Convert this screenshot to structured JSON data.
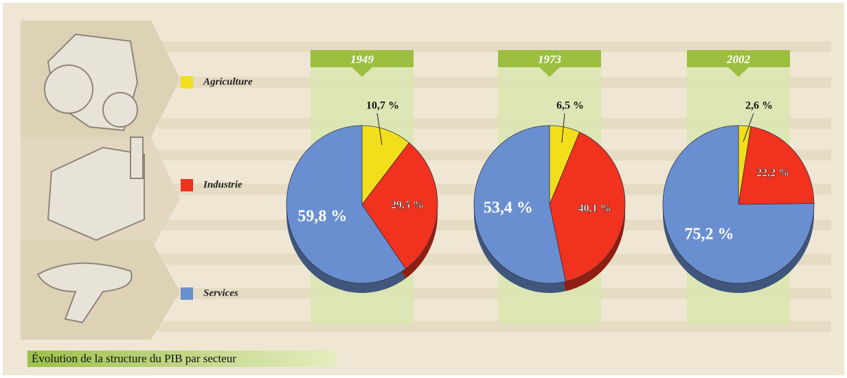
{
  "title": "Évolution de la structure du PIB par secteur",
  "legend": [
    {
      "name": "Agriculture",
      "color": "#f2df1c"
    },
    {
      "name": "Industrie",
      "color": "#f0321e"
    },
    {
      "name": "Services",
      "color": "#6a8fd0"
    }
  ],
  "chart_data": [
    {
      "type": "pie",
      "title": "1949",
      "values": [
        10.7,
        29.5,
        59.8
      ],
      "value_labels": [
        "10,7 %",
        "29,5 %",
        "59,8 %"
      ]
    },
    {
      "type": "pie",
      "title": "1973",
      "values": [
        6.5,
        40.1,
        53.4
      ],
      "value_labels": [
        "6,5 %",
        "40,1 %",
        "53,4 %"
      ]
    },
    {
      "type": "pie",
      "title": "2002",
      "values": [
        2.6,
        22.2,
        75.2
      ],
      "value_labels": [
        "2,6 %",
        "22,2 %",
        "75,2 %"
      ]
    }
  ]
}
